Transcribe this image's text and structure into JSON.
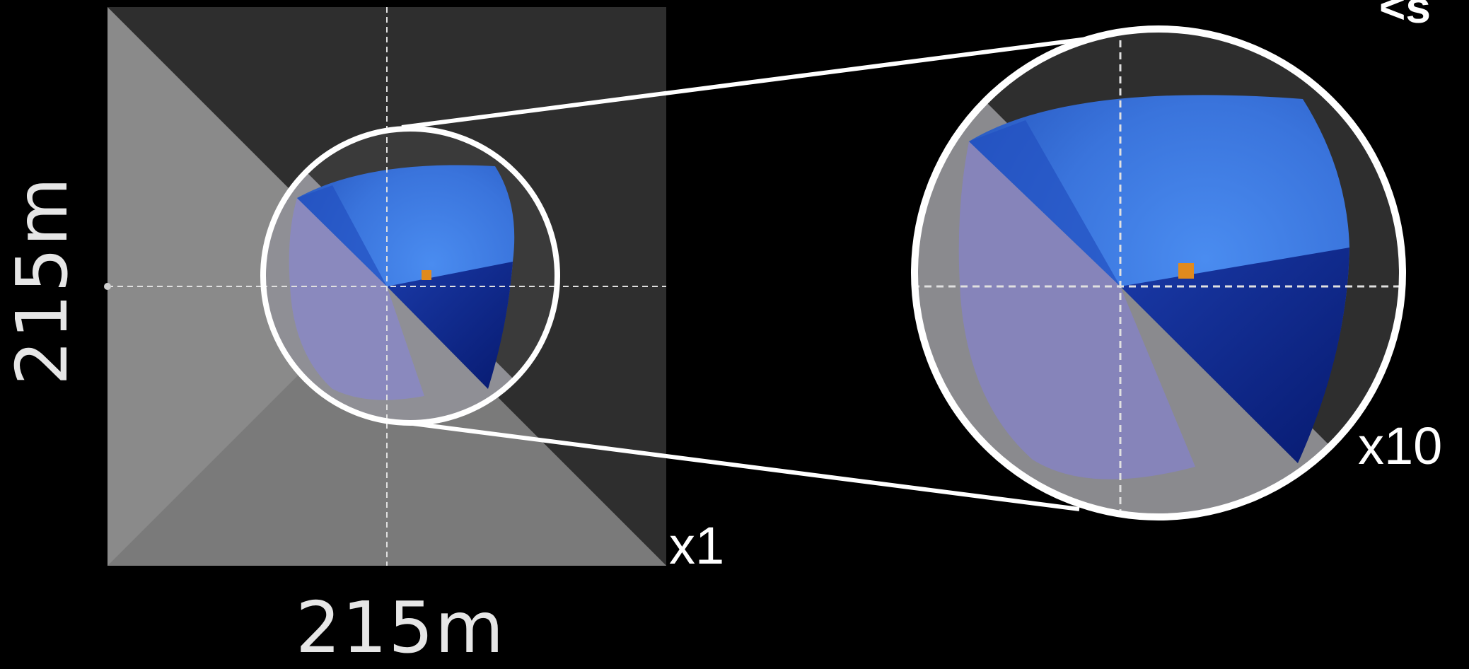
{
  "labels": {
    "width_dimension": "215m",
    "height_dimension": "215m",
    "scale_small": "x1",
    "scale_large": "x10",
    "corner_fragment": "<s"
  },
  "colors": {
    "background": "#000000",
    "dark_ground": "#2e2e2e",
    "light_ground": "#8a8a8a",
    "visibility_blue": "#3f7fe6",
    "visibility_dark_blue": "#0d2a8f",
    "marker_orange": "#e08a1e",
    "outline": "#ffffff"
  }
}
